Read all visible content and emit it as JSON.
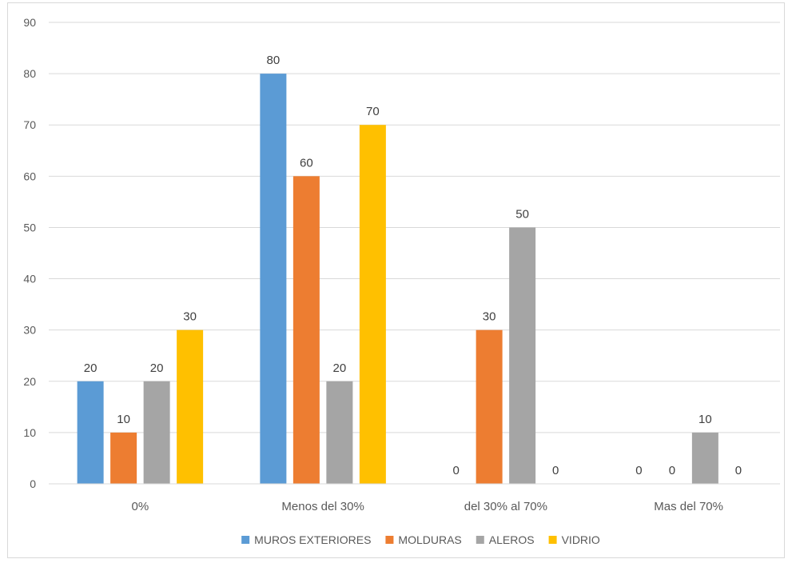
{
  "chart_data": {
    "type": "bar",
    "title": "",
    "xlabel": "",
    "ylabel": "",
    "ylim": [
      0,
      90
    ],
    "ytick_step": 10,
    "grid": true,
    "legend_position": "bottom",
    "categories": [
      "0%",
      "Menos del 30%",
      "del 30% al 70%",
      "Mas del 70%"
    ],
    "series": [
      {
        "name": "MUROS EXTERIORES",
        "color": "#5b9bd5",
        "values": [
          20,
          80,
          0,
          0
        ]
      },
      {
        "name": "MOLDURAS",
        "color": "#ed7d31",
        "values": [
          10,
          60,
          30,
          0
        ]
      },
      {
        "name": "ALEROS",
        "color": "#a5a5a5",
        "values": [
          20,
          20,
          50,
          10
        ]
      },
      {
        "name": "VIDRIO",
        "color": "#ffc000",
        "values": [
          30,
          70,
          0,
          0
        ]
      }
    ]
  }
}
